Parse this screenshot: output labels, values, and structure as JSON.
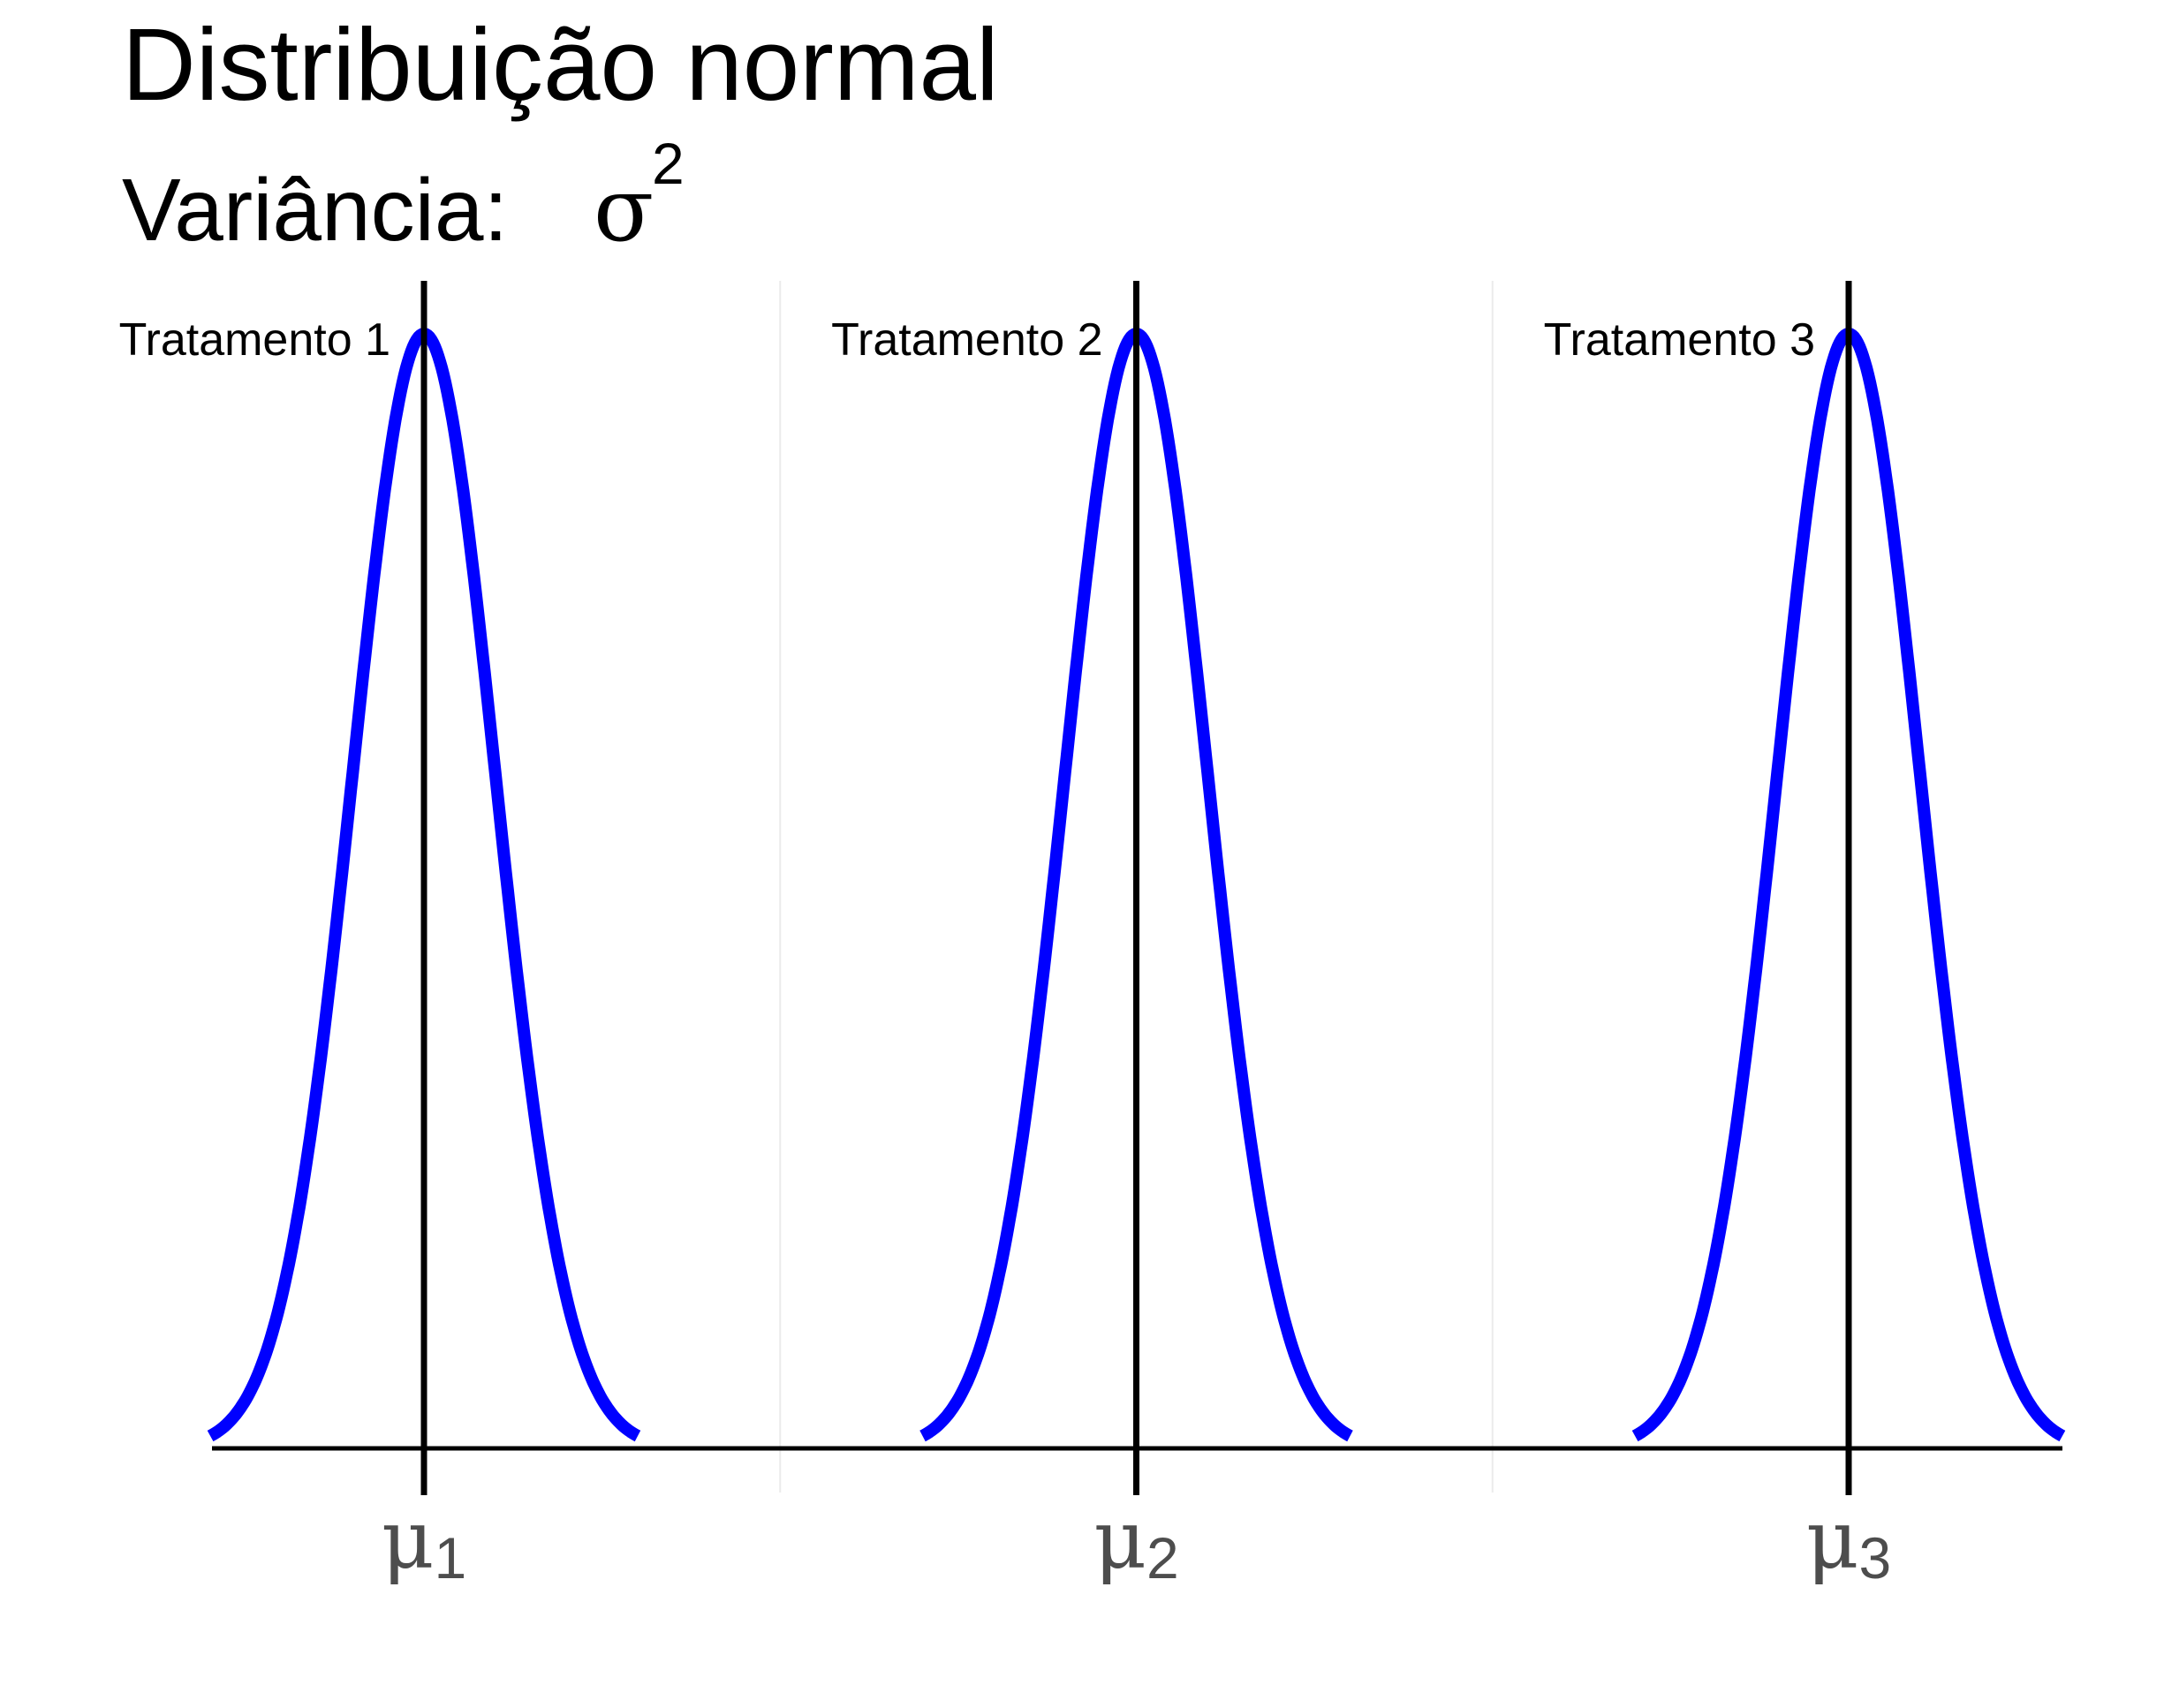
{
  "title": "Distribuição normal",
  "subtitle": {
    "prefix": "Variância:",
    "symbol": "σ",
    "exponent": "2"
  },
  "chart_data": {
    "type": "line",
    "title": "Distribuição normal",
    "subtitle": "Variância: σ²",
    "xlabel": "",
    "ylabel": "",
    "grid": true,
    "legend": "none",
    "xlim": [
      0,
      3
    ],
    "x_ticks": [
      {
        "value": 0.5,
        "symbol": "μ",
        "subscript": "1"
      },
      {
        "value": 1.5,
        "symbol": "μ",
        "subscript": "2"
      },
      {
        "value": 2.5,
        "symbol": "μ",
        "subscript": "3"
      }
    ],
    "minor_gridlines": [
      1.0,
      2.0
    ],
    "series": [
      {
        "label": "Tratamento 1",
        "mean": 0.5,
        "sd": 0.1,
        "x_range": [
          0.2,
          0.8
        ]
      },
      {
        "label": "Tratamento 2",
        "mean": 1.5,
        "sd": 0.1,
        "x_range": [
          1.2,
          1.8
        ]
      },
      {
        "label": "Tratamento 3",
        "mean": 2.5,
        "sd": 0.1,
        "x_range": [
          2.2,
          2.8
        ]
      }
    ],
    "vertical_lines": [
      0.5,
      1.5,
      2.5
    ],
    "colors": {
      "curve": "#0000ff",
      "mean_line": "#000000",
      "axis": "#000000",
      "grid": "#ebebeb",
      "tick_text": "#4d4d4d"
    }
  }
}
